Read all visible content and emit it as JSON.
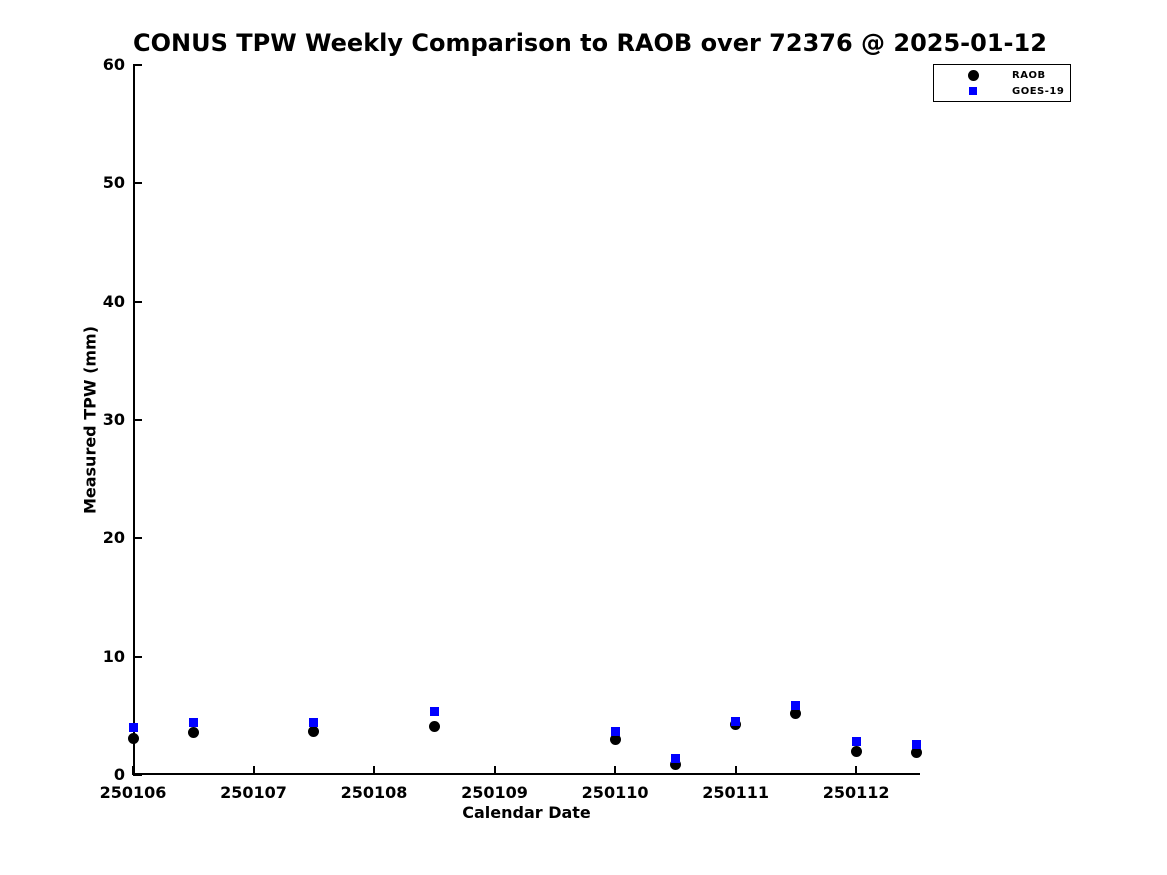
{
  "title": "CONUS TPW Weekly Comparison to RAOB over 72376 @ 2025-01-12",
  "chart_data": {
    "type": "scatter",
    "title": "CONUS TPW Weekly Comparison to RAOB over 72376 @ 2025-01-12",
    "xlabel": "Calendar Date",
    "ylabel": "Measured TPW (mm)",
    "xlim": [
      250106.0,
      250112.53
    ],
    "ylim": [
      0,
      60
    ],
    "grid": false,
    "legend_position": "upper right",
    "x_ticks": [
      {
        "value": 250106,
        "label": "250106"
      },
      {
        "value": 250107,
        "label": "250107"
      },
      {
        "value": 250108,
        "label": "250108"
      },
      {
        "value": 250109,
        "label": "250109"
      },
      {
        "value": 250110,
        "label": "250110"
      },
      {
        "value": 250111,
        "label": "250111"
      },
      {
        "value": 250112,
        "label": "250112"
      }
    ],
    "y_ticks": [
      {
        "value": 0,
        "label": "0"
      },
      {
        "value": 10,
        "label": "10"
      },
      {
        "value": 20,
        "label": "20"
      },
      {
        "value": 30,
        "label": "30"
      },
      {
        "value": 40,
        "label": "40"
      },
      {
        "value": 50,
        "label": "50"
      },
      {
        "value": 60,
        "label": "60"
      }
    ],
    "series": [
      {
        "name": "RAOB",
        "marker": "circle",
        "color": "#000000",
        "points": [
          [
            250106.0,
            3.1
          ],
          [
            250106.5,
            3.6
          ],
          [
            250107.5,
            3.7
          ],
          [
            250108.5,
            4.1
          ],
          [
            250110.0,
            3.0
          ],
          [
            250110.5,
            0.9
          ],
          [
            250111.0,
            4.3
          ],
          [
            250111.5,
            5.2
          ],
          [
            250112.0,
            2.0
          ],
          [
            250112.5,
            1.9
          ]
        ]
      },
      {
        "name": "GOES-19",
        "marker": "square",
        "color": "#0000ff",
        "points": [
          [
            250106.0,
            4.0
          ],
          [
            250106.5,
            4.4
          ],
          [
            250107.5,
            4.4
          ],
          [
            250108.5,
            5.4
          ],
          [
            250110.0,
            3.7
          ],
          [
            250110.5,
            1.4
          ],
          [
            250111.0,
            4.5
          ],
          [
            250111.5,
            5.9
          ],
          [
            250112.0,
            2.8
          ],
          [
            250112.5,
            2.6
          ]
        ]
      }
    ]
  }
}
